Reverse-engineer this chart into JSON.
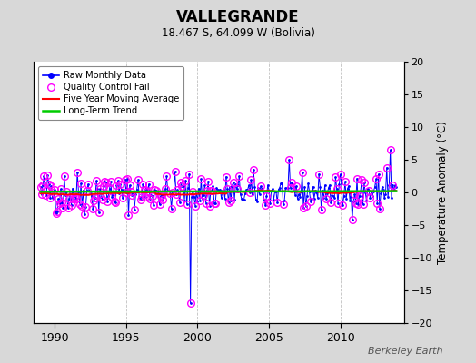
{
  "title": "VALLEGRANDE",
  "subtitle": "18.467 S, 64.099 W (Bolivia)",
  "ylabel": "Temperature Anomaly (°C)",
  "watermark": "Berkeley Earth",
  "xlim": [
    1988.5,
    2014.5
  ],
  "ylim": [
    -20,
    20
  ],
  "yticks": [
    -20,
    -15,
    -10,
    -5,
    0,
    5,
    10,
    15,
    20
  ],
  "xticks": [
    1990,
    1995,
    2000,
    2005,
    2010
  ],
  "raw_color": "#0000ff",
  "qc_color": "#ff00ff",
  "ma_color": "#ff0000",
  "trend_color": "#00cc00",
  "bg_color": "#d8d8d8",
  "plot_bg": "#ffffff",
  "grid_color": "#c0c0c0",
  "seed": 42
}
